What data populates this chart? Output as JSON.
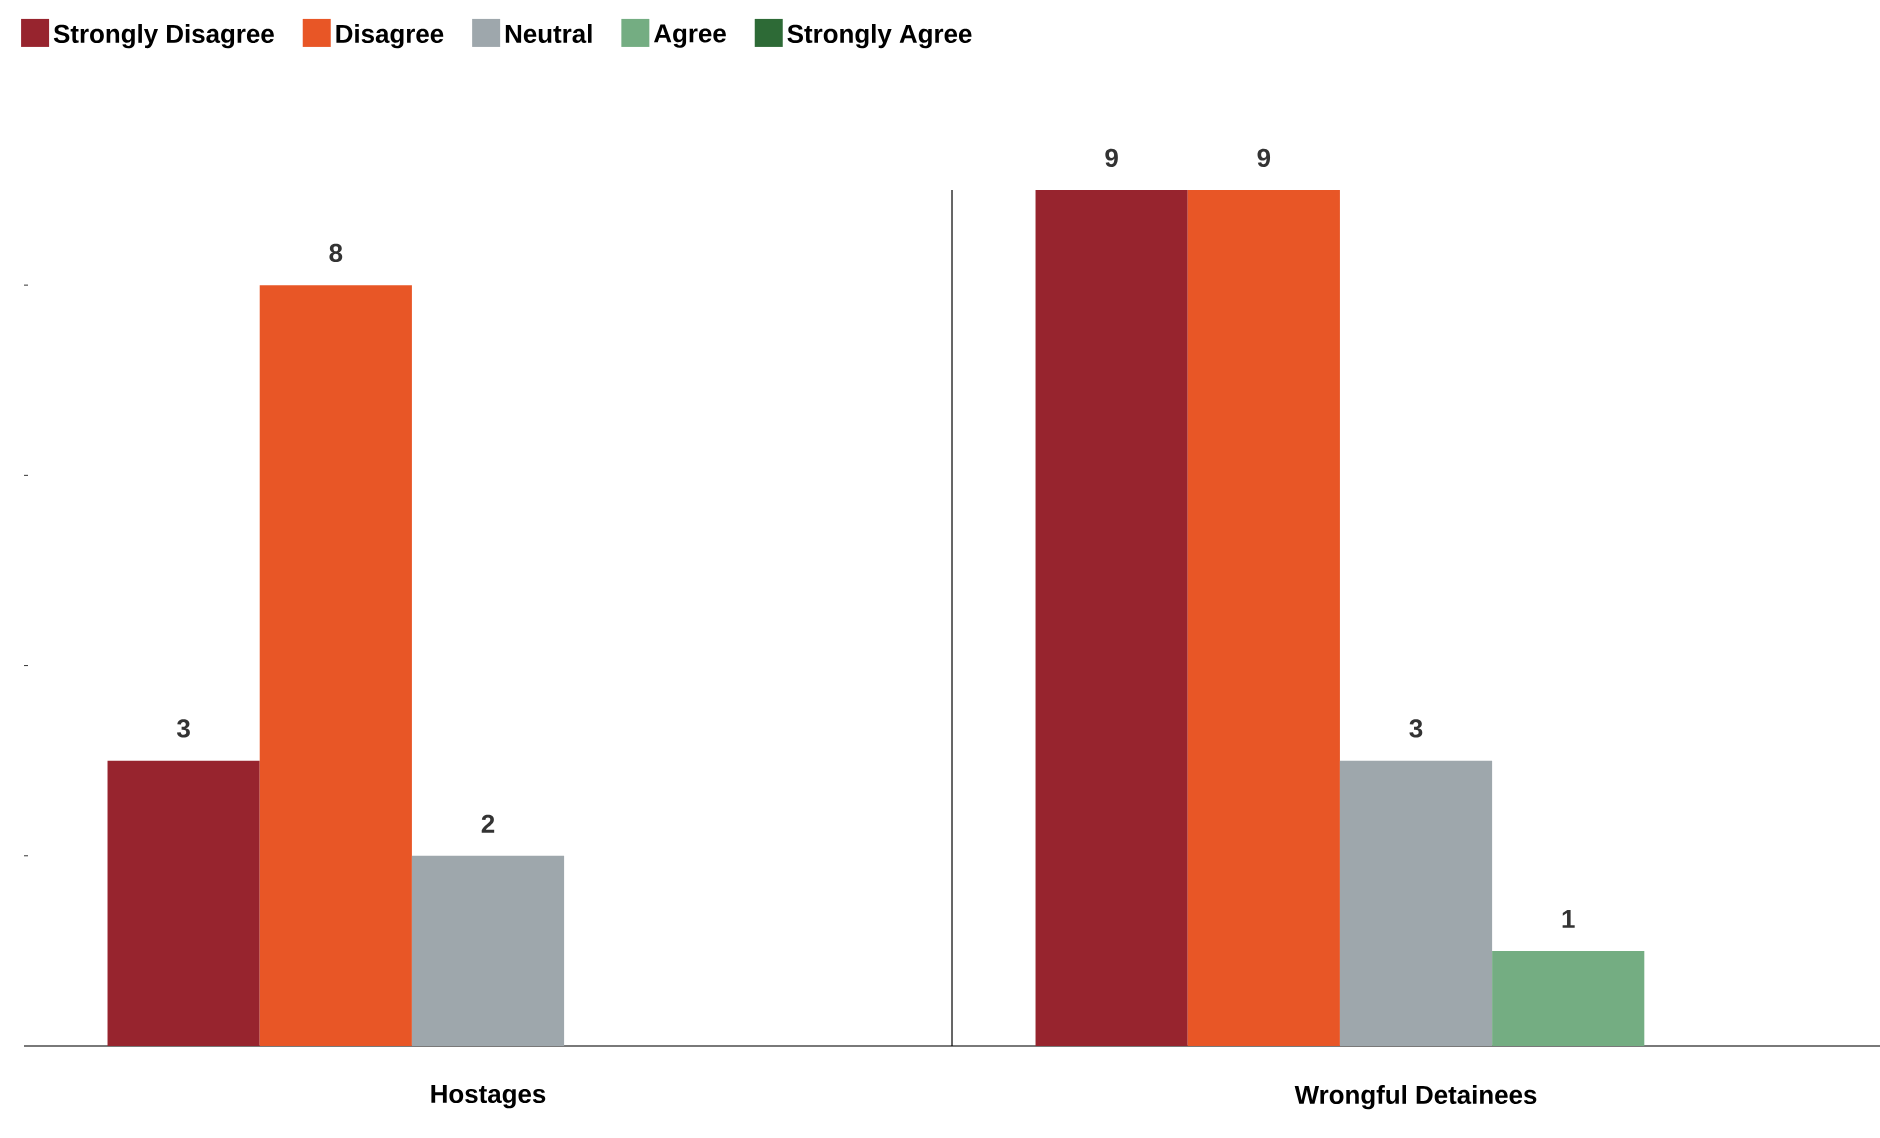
{
  "chart_data": {
    "type": "bar",
    "categories": [
      "Hostages",
      "Wrongful Detainees"
    ],
    "series": [
      {
        "name": "Strongly Disagree",
        "color": "#97242e",
        "values": [
          3,
          9
        ],
        "value_labels": [
          "3",
          "9"
        ]
      },
      {
        "name": "Disagree",
        "color": "#e85626",
        "values": [
          8,
          9
        ],
        "value_labels": [
          "8",
          "9"
        ]
      },
      {
        "name": "Neutral",
        "color": "#9ea7ac",
        "values": [
          2,
          3
        ],
        "value_labels": [
          "2",
          "3"
        ]
      },
      {
        "name": "Agree",
        "color": "#74ad82",
        "values": [
          0,
          1
        ],
        "value_labels": [
          null,
          "1"
        ]
      },
      {
        "name": "Strongly Agree",
        "color": "#2d6a36",
        "values": [
          0,
          0
        ],
        "value_labels": [
          null,
          null
        ]
      }
    ],
    "ylim": [
      0,
      9
    ],
    "yticks": [
      {
        "value": 2,
        "label": null
      },
      {
        "value": 4,
        "label": null
      },
      {
        "value": 6,
        "label": null
      },
      {
        "value": 8,
        "label": null
      }
    ],
    "tick_labels": "x",
    "legend": "top left",
    "grid": false
  }
}
